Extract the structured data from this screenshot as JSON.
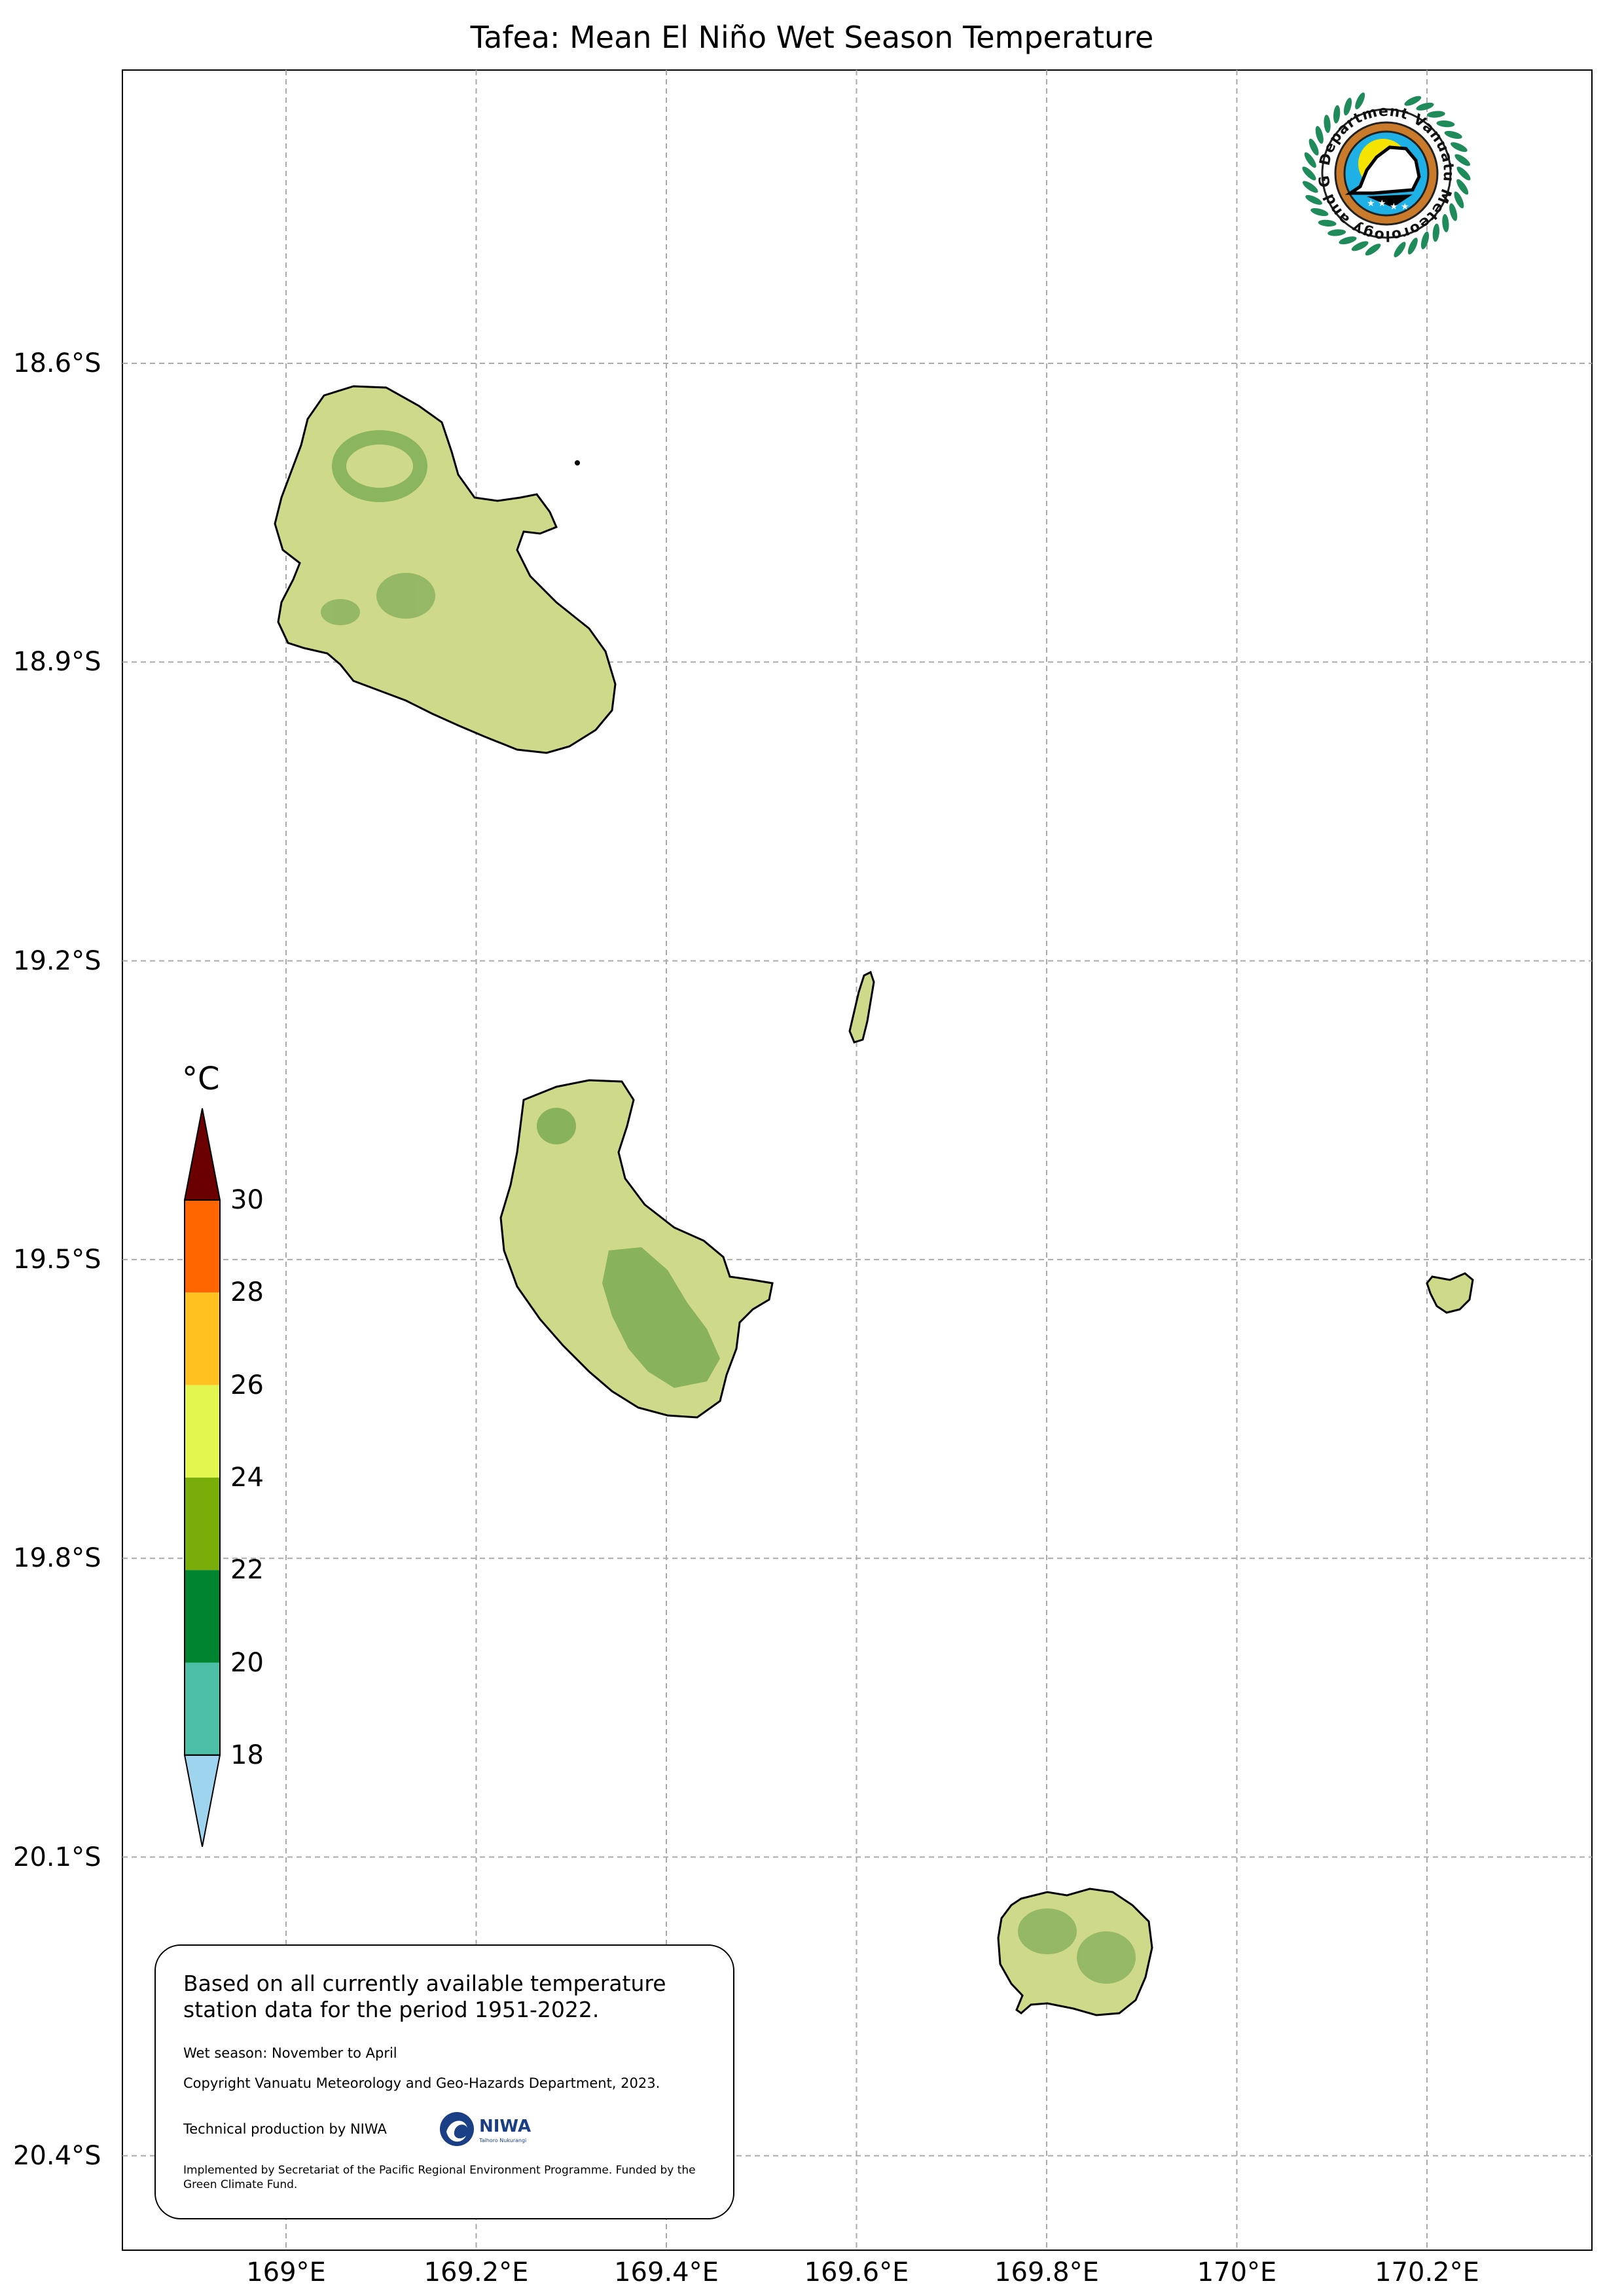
{
  "title": "Tafea: Mean El Niño Wet Season Temperature",
  "map": {
    "region": "Tafea",
    "extent": {
      "lon": [
        168.83,
        170.37
      ],
      "lat": [
        -20.49,
        -18.31
      ]
    },
    "gridlines": true,
    "lat_ticks": [
      {
        "value": -18.6,
        "label": "18.6°S"
      },
      {
        "value": -18.9,
        "label": "18.9°S"
      },
      {
        "value": -19.2,
        "label": "19.2°S"
      },
      {
        "value": -19.5,
        "label": "19.5°S"
      },
      {
        "value": -19.8,
        "label": "19.8°S"
      },
      {
        "value": -20.1,
        "label": "20.1°S"
      },
      {
        "value": -20.4,
        "label": "20.4°S"
      }
    ],
    "lon_ticks": [
      {
        "value": 169.0,
        "label": "169°E"
      },
      {
        "value": 169.2,
        "label": "169.2°E"
      },
      {
        "value": 169.4,
        "label": "169.4°E"
      },
      {
        "value": 169.6,
        "label": "169.6°E"
      },
      {
        "value": 169.8,
        "label": "169.8°E"
      },
      {
        "value": 170.0,
        "label": "170°E"
      },
      {
        "value": 170.2,
        "label": "170.2°E"
      }
    ],
    "land_color": "#cfd98a",
    "highland_color": "#7fae57"
  },
  "colorbar": {
    "unit": "°C",
    "ticks": [
      "18",
      "20",
      "22",
      "24",
      "26",
      "28",
      "30"
    ],
    "bins": [
      {
        "range": "<18",
        "color": "#9fd4ee"
      },
      {
        "range": "18-20",
        "color": "#4cbfa6"
      },
      {
        "range": "20-22",
        "color": "#00842f"
      },
      {
        "range": "22-24",
        "color": "#79ae0a"
      },
      {
        "range": "24-26",
        "color": "#e3f54f"
      },
      {
        "range": "26-28",
        "color": "#ffc11f"
      },
      {
        "range": "28-30",
        "color": "#ff6600"
      },
      {
        "range": ">30",
        "color": "#6b0000"
      }
    ]
  },
  "logo": {
    "text": "Department Vanuatu Meteorology and Geo-Hazards",
    "colors": {
      "laurel": "#1f8a5a",
      "ring": "#c97a2a",
      "sky": "#1fb1e6",
      "sun": "#f5e400"
    }
  },
  "info": {
    "main": "Based on all currently available temperature station data for the period 1951-2022.",
    "season": "Wet season: November to April",
    "copyright": "Copyright Vanuatu Meteorology and Geo-Hazards Department, 2023.",
    "production": "Technical production by NIWA",
    "niwa_logo": "NIWA",
    "niwa_tagline": "Taihoro Nukurangi",
    "implemented": "Implemented by Secretariat of the Pacific Regional Environment Programme. Funded by the Green Climate Fund."
  }
}
